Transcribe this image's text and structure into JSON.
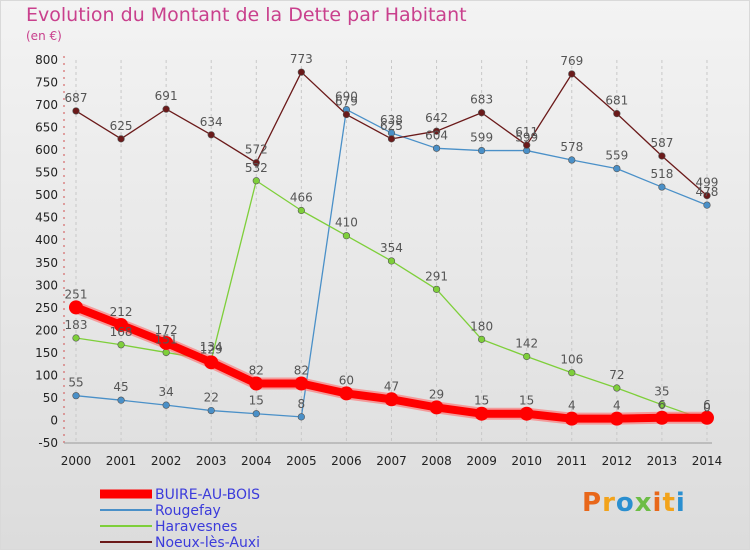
{
  "header": {
    "title": "Evolution du Montant de la Dette par Habitant",
    "subtitle": "(en €)"
  },
  "logo": {
    "text": "Proxiti",
    "colors": [
      "#e8671a",
      "#f2a31b",
      "#2a8fd0",
      "#6cbd45"
    ]
  },
  "chart_data": {
    "type": "line",
    "title": "Evolution du Montant de la Dette par Habitant",
    "subtitle": "(en €)",
    "x": [
      "2000",
      "2001",
      "2002",
      "2003",
      "2004",
      "2005",
      "2006",
      "2007",
      "2008",
      "2009",
      "2010",
      "2011",
      "2012",
      "2013",
      "2014"
    ],
    "y_ticks": [
      "800",
      "750",
      "700",
      "650",
      "600",
      "550",
      "500",
      "450",
      "400",
      "350",
      "300",
      "250",
      "200",
      "150",
      "100",
      "50",
      "0",
      "-50"
    ],
    "ylim": [
      -50,
      800
    ],
    "grid": "vertical",
    "legend_position": "bottom-left",
    "series": [
      {
        "name": "BUIRE-AU-BOIS",
        "color": "#ff0000",
        "values": [
          251,
          212,
          172,
          129,
          82,
          82,
          60,
          47,
          29,
          15,
          15,
          4,
          4,
          6,
          6
        ],
        "labels": [
          "251",
          "212",
          "172",
          "129",
          "82",
          "82",
          "60",
          "47",
          "29",
          "15",
          "15",
          "4",
          "4",
          "6",
          "6"
        ]
      },
      {
        "name": "Rougefay",
        "color": "#4a90c8",
        "values": [
          55,
          45,
          34,
          22,
          15,
          8,
          690,
          638,
          604,
          599,
          599,
          578,
          559,
          518,
          478
        ],
        "labels": [
          "55",
          "45",
          "34",
          "22",
          "15",
          "8",
          "690",
          "638",
          "604",
          "599",
          "599",
          "578",
          "559",
          "518",
          "478"
        ]
      },
      {
        "name": "Haravesnes",
        "color": "#7ecf3a",
        "values": [
          183,
          168,
          151,
          134,
          532,
          466,
          410,
          354,
          291,
          180,
          142,
          106,
          72,
          35,
          0
        ],
        "labels": [
          "183",
          "168",
          "151",
          "134",
          "532",
          "466",
          "410",
          "354",
          "291",
          "180",
          "142",
          "106",
          "72",
          "35",
          "0"
        ]
      },
      {
        "name": "Noeux-lès-Auxi",
        "color": "#6b1a1a",
        "values": [
          687,
          625,
          691,
          634,
          572,
          773,
          679,
          625,
          642,
          683,
          611,
          769,
          681,
          587,
          499
        ],
        "labels": [
          "687",
          "625",
          "691",
          "634",
          "572",
          "773",
          "679",
          "625",
          "642",
          "683",
          "611",
          "769",
          "681",
          "587",
          "499"
        ]
      }
    ]
  }
}
